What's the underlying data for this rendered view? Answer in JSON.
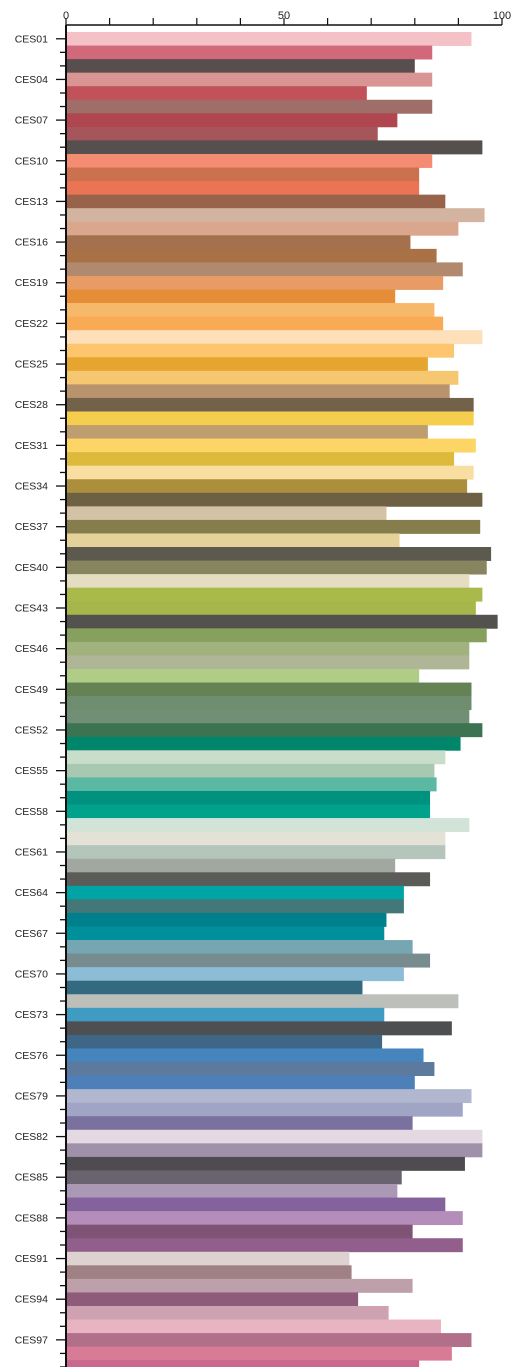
{
  "chart_data": {
    "type": "bar",
    "orientation": "horizontal",
    "title": "",
    "xlabel": "",
    "ylabel": "",
    "xlim": [
      0,
      100
    ],
    "x_ticks": [
      0,
      50,
      100
    ],
    "x_axis_position": "top",
    "grid": false,
    "legend": "none",
    "labeled_categories": [
      "CES01",
      "CES04",
      "CES07",
      "CES10",
      "CES13",
      "CES16",
      "CES19",
      "CES22",
      "CES25",
      "CES28",
      "CES31",
      "CES34",
      "CES37",
      "CES40",
      "CES43",
      "CES46",
      "CES49",
      "CES52",
      "CES55",
      "CES58",
      "CES61",
      "CES64",
      "CES67",
      "CES70",
      "CES73",
      "CES76",
      "CES79",
      "CES82",
      "CES85",
      "CES88",
      "CES91",
      "CES94",
      "CES97"
    ],
    "bars": [
      {
        "value": 93.0,
        "color": "#F4C1C6"
      },
      {
        "value": 84.0,
        "color": "#D2697B"
      },
      {
        "value": 80.0,
        "color": "#594E4E"
      },
      {
        "value": 84.0,
        "color": "#D99593"
      },
      {
        "value": 69.0,
        "color": "#C2525A"
      },
      {
        "value": 84.0,
        "color": "#A06E69"
      },
      {
        "value": 76.0,
        "color": "#B0464F"
      },
      {
        "value": 71.5,
        "color": "#A6555B"
      },
      {
        "value": 95.5,
        "color": "#554F4D"
      },
      {
        "value": 84.0,
        "color": "#F38C72"
      },
      {
        "value": 81.0,
        "color": "#CC7150"
      },
      {
        "value": 81.0,
        "color": "#EB7454"
      },
      {
        "value": 87.0,
        "color": "#98634A"
      },
      {
        "value": 96.0,
        "color": "#D3B4A1"
      },
      {
        "value": 90.0,
        "color": "#DAA78E"
      },
      {
        "value": 79.0,
        "color": "#A4704D"
      },
      {
        "value": 85.0,
        "color": "#A87146"
      },
      {
        "value": 91.0,
        "color": "#B1896E"
      },
      {
        "value": 86.5,
        "color": "#E89B64"
      },
      {
        "value": 75.5,
        "color": "#E68D38"
      },
      {
        "value": 84.5,
        "color": "#F6B96B"
      },
      {
        "value": 86.5,
        "color": "#F9AA55"
      },
      {
        "value": 95.5,
        "color": "#FDDFB9"
      },
      {
        "value": 89.0,
        "color": "#FDC66E"
      },
      {
        "value": 83.0,
        "color": "#E6A52E"
      },
      {
        "value": 90.0,
        "color": "#F5C770"
      },
      {
        "value": 88.0,
        "color": "#B8936E"
      },
      {
        "value": 93.5,
        "color": "#72624A"
      },
      {
        "value": 93.5,
        "color": "#F6CE4E"
      },
      {
        "value": 83.0,
        "color": "#BE9E6E"
      },
      {
        "value": 94.0,
        "color": "#FCD566"
      },
      {
        "value": 89.0,
        "color": "#DDBA3C"
      },
      {
        "value": 93.5,
        "color": "#F8DEA1"
      },
      {
        "value": 92.0,
        "color": "#AB8F3D"
      },
      {
        "value": 95.5,
        "color": "#6E6143"
      },
      {
        "value": 73.5,
        "color": "#D4C2A5"
      },
      {
        "value": 95.0,
        "color": "#857D4B"
      },
      {
        "value": 76.5,
        "color": "#E3D29A"
      },
      {
        "value": 97.5,
        "color": "#5C5A4E"
      },
      {
        "value": 96.5,
        "color": "#878460"
      },
      {
        "value": 92.5,
        "color": "#E5DDC2"
      },
      {
        "value": 95.5,
        "color": "#A9B94A"
      },
      {
        "value": 94.0,
        "color": "#A5B74A"
      },
      {
        "value": 99.0,
        "color": "#53524F"
      },
      {
        "value": 96.5,
        "color": "#86A05D"
      },
      {
        "value": 92.5,
        "color": "#A1B27E"
      },
      {
        "value": 92.5,
        "color": "#AEB696"
      },
      {
        "value": 81.0,
        "color": "#AFCD87"
      },
      {
        "value": 93.0,
        "color": "#658255"
      },
      {
        "value": 93.0,
        "color": "#6E8E6F"
      },
      {
        "value": 92.5,
        "color": "#718F75"
      },
      {
        "value": 95.5,
        "color": "#3C7451"
      },
      {
        "value": 90.5,
        "color": "#00866A"
      },
      {
        "value": 87.0,
        "color": "#C9DECA"
      },
      {
        "value": 84.5,
        "color": "#A8C8B2"
      },
      {
        "value": 85.0,
        "color": "#5AB8A3"
      },
      {
        "value": 83.5,
        "color": "#00927E"
      },
      {
        "value": 83.5,
        "color": "#00A28B"
      },
      {
        "value": 92.5,
        "color": "#D2E3D8"
      },
      {
        "value": 87.0,
        "color": "#E4E1D6"
      },
      {
        "value": 87.0,
        "color": "#B4C6BC"
      },
      {
        "value": 75.5,
        "color": "#A1A89F"
      },
      {
        "value": 83.5,
        "color": "#5B5C57"
      },
      {
        "value": 77.5,
        "color": "#00A4A5"
      },
      {
        "value": 77.5,
        "color": "#437778"
      },
      {
        "value": 73.5,
        "color": "#00808C"
      },
      {
        "value": 73.0,
        "color": "#00909C"
      },
      {
        "value": 79.5,
        "color": "#76A6B2"
      },
      {
        "value": 83.5,
        "color": "#788B8F"
      },
      {
        "value": 77.5,
        "color": "#8CBCD6"
      },
      {
        "value": 68.0,
        "color": "#336A7F"
      },
      {
        "value": 90.0,
        "color": "#BDBFBB"
      },
      {
        "value": 73.0,
        "color": "#409BC3"
      },
      {
        "value": 88.5,
        "color": "#4D4F51"
      },
      {
        "value": 72.5,
        "color": "#3E6686"
      },
      {
        "value": 82.0,
        "color": "#4684BE"
      },
      {
        "value": 84.5,
        "color": "#5B7A9D"
      },
      {
        "value": 80.0,
        "color": "#4D80B9"
      },
      {
        "value": 93.0,
        "color": "#B0B7CF"
      },
      {
        "value": 91.0,
        "color": "#A0A4C5"
      },
      {
        "value": 79.5,
        "color": "#7A719E"
      },
      {
        "value": 95.5,
        "color": "#E4D9E3"
      },
      {
        "value": 95.5,
        "color": "#9E91A9"
      },
      {
        "value": 91.5,
        "color": "#4F4C51"
      },
      {
        "value": 77.0,
        "color": "#69636F"
      },
      {
        "value": 76.0,
        "color": "#AA98B5"
      },
      {
        "value": 87.0,
        "color": "#84629B"
      },
      {
        "value": 91.0,
        "color": "#B48DBA"
      },
      {
        "value": 79.5,
        "color": "#7E5375"
      },
      {
        "value": 91.0,
        "color": "#925E8B"
      },
      {
        "value": 65.0,
        "color": "#DED2D0"
      },
      {
        "value": 65.5,
        "color": "#A08183"
      },
      {
        "value": 79.5,
        "color": "#BDA0A9"
      },
      {
        "value": 67.0,
        "color": "#8E5C7A"
      },
      {
        "value": 74.0,
        "color": "#CEA2B1"
      },
      {
        "value": 86.0,
        "color": "#E8B4C2"
      },
      {
        "value": 93.0,
        "color": "#B16F89"
      },
      {
        "value": 88.5,
        "color": "#D77B96"
      },
      {
        "value": 81.0,
        "color": "#C8688E"
      }
    ]
  }
}
